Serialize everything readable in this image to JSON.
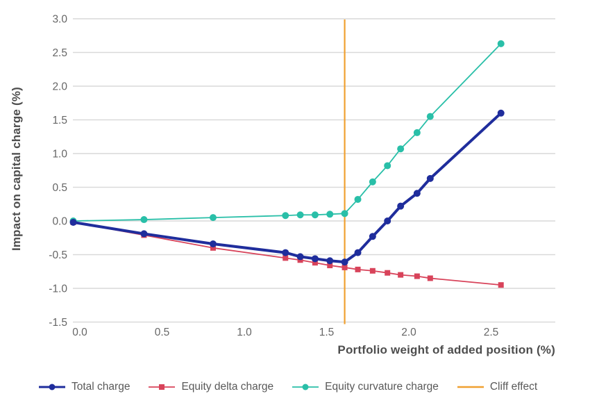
{
  "figure": {
    "background": "#ffffff"
  },
  "chart_data": {
    "type": "line",
    "title": "",
    "xlabel": "Portfolio weight of added position (%)",
    "ylabel": "Impact on capital charge (%)",
    "xlim": [
      -0.05,
      2.89
    ],
    "ylim": [
      -1.5,
      3.0
    ],
    "grid": "horizontal",
    "legend_position": "bottom",
    "x_tick_labels": [
      "0.0",
      "0.5",
      "1.0",
      "1.5",
      "2.0",
      "2.5"
    ],
    "y_tick_labels": [
      "3.0",
      "2.5",
      "2.0",
      "1.5",
      "1.0",
      "0.5",
      "0.0",
      "-0.5",
      "-1.0",
      "-1.5"
    ],
    "x": [
      -0.04,
      0.39,
      0.81,
      1.25,
      1.34,
      1.43,
      1.52,
      1.61,
      1.69,
      1.78,
      1.87,
      1.95,
      2.05,
      2.13,
      2.56
    ],
    "series": [
      {
        "name": "Equity delta charge",
        "color": "#d8435a",
        "marker": "square",
        "line_width": 1.8,
        "values": [
          -0.02,
          -0.21,
          -0.4,
          -0.55,
          -0.58,
          -0.62,
          -0.66,
          -0.69,
          -0.72,
          -0.74,
          -0.77,
          -0.8,
          -0.82,
          -0.85,
          -0.95
        ]
      },
      {
        "name": "Equity curvature charge",
        "color": "#29bfa8",
        "marker": "circle",
        "line_width": 1.8,
        "values": [
          0.0,
          0.02,
          0.05,
          0.08,
          0.09,
          0.09,
          0.1,
          0.11,
          0.32,
          0.58,
          0.82,
          1.07,
          1.31,
          1.55,
          2.63
        ]
      },
      {
        "name": "Total charge",
        "color": "#1f2d9c",
        "marker": "circle",
        "line_width": 4,
        "values": [
          -0.02,
          -0.19,
          -0.34,
          -0.47,
          -0.53,
          -0.56,
          -0.59,
          -0.61,
          -0.47,
          -0.23,
          0.0,
          0.22,
          0.41,
          0.63,
          1.6
        ]
      },
      {
        "name": "Cliff effect",
        "color": "#f0a030",
        "marker": "none",
        "line_width": 2.2,
        "type": "vline",
        "x_value": 1.61
      }
    ],
    "legend_order": [
      "Total charge",
      "Equity delta charge",
      "Equity curvature charge",
      "Cliff effect"
    ]
  },
  "style": {
    "grid_color": "#d9d9d9",
    "tick_text_color": "#666666",
    "axis_title_color": "#4d4d4d",
    "legend_text_color": "#595959"
  }
}
